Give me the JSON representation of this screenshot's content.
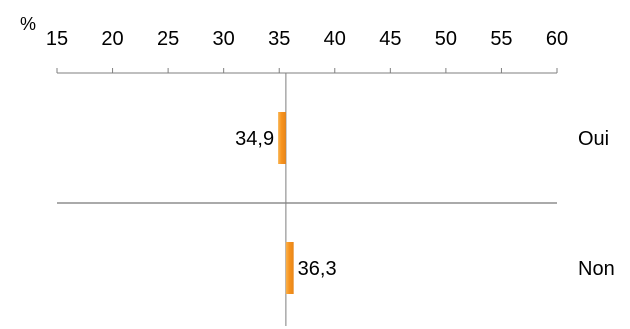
{
  "chart_data": {
    "type": "bar",
    "orientation": "horizontal",
    "unit": "%",
    "axis_position": "top",
    "xlim": [
      15,
      60
    ],
    "ticks": [
      15,
      20,
      25,
      30,
      35,
      40,
      45,
      50,
      55,
      60
    ],
    "tick_labels": [
      "15",
      "20",
      "25",
      "30",
      "35",
      "40",
      "45",
      "50",
      "55",
      "60"
    ],
    "baseline": 35.6,
    "categories": [
      "Oui",
      "Non"
    ],
    "values": [
      34.9,
      36.3
    ],
    "data_labels": [
      "34,9",
      "36,3"
    ],
    "bar_color": "#F7931E",
    "axis_color": "#7f7f7f"
  }
}
